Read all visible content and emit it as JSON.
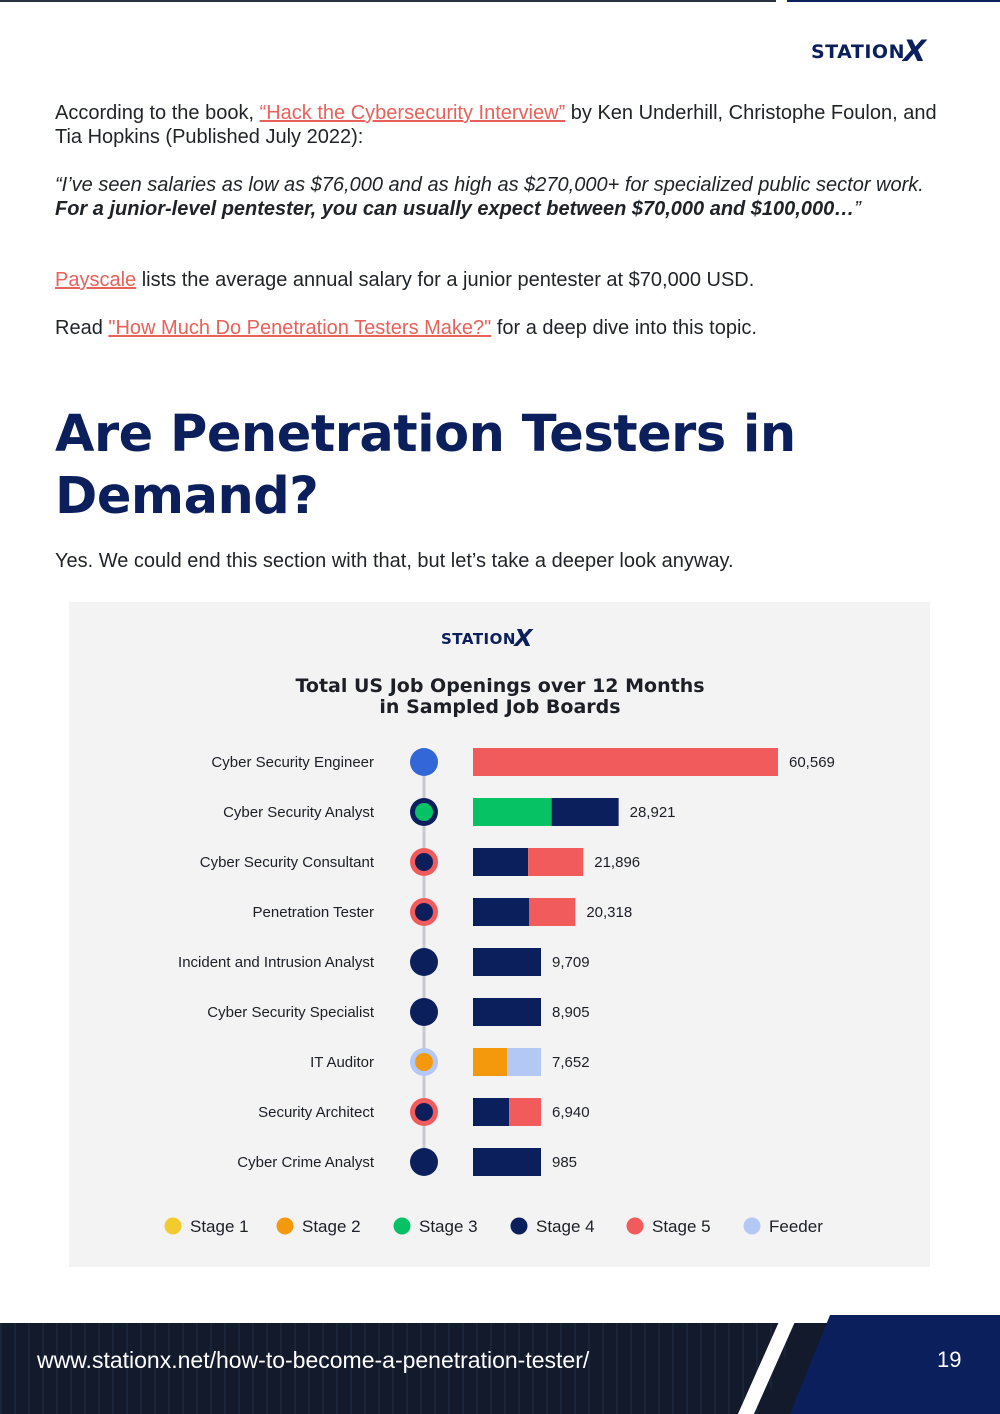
{
  "brand": {
    "logo_text": "STATION",
    "logo_x": "X",
    "color": "#0b1f5c"
  },
  "intro": {
    "lead_before": "According to the book, ",
    "book_link": "“Hack the Cybersecurity Interview”",
    "lead_after": " by Ken Underhill, Christophe Foulon, and Tia Hopkins (Published July 2022):",
    "quote_plain": "“I’ve seen salaries as low as $76,000 and as high as $270,000+ for specialized public sector work. ",
    "quote_bold": "For a junior-level pentester, you can usually expect between $70,000 and $100,000…",
    "quote_end": "”",
    "payscale_link": "Payscale",
    "payscale_text": " lists the average annual salary for a junior pentester at $70,000 USD.",
    "read_before": "Read ",
    "read_link": "\"How Much Do Penetration Testers Make?\"",
    "read_after": " for a deep dive into this topic."
  },
  "section": {
    "heading": "Are Penetration Testers in Demand?",
    "paragraph": "Yes. We could end this section with that, but let’s take a deeper look anyway."
  },
  "chart_data": {
    "type": "bar",
    "orientation": "horizontal",
    "title_line1": "Total US Job Openings over 12 Months",
    "title_line2": "in Sampled Job Boards",
    "categories": [
      "Cyber Security Engineer",
      "Cyber Security Analyst",
      "Cyber Security Consultant",
      "Penetration Tester",
      "Incident and Intrusion Analyst",
      "Cyber Security Specialist",
      "IT Auditor",
      "Security Architect",
      "Cyber Crime Analyst"
    ],
    "values": [
      60569,
      28921,
      21896,
      20318,
      9709,
      8905,
      7652,
      6940,
      985
    ],
    "value_labels": [
      "60,569",
      "28,921",
      "21,896",
      "20,318",
      "9,709",
      "8,905",
      "7,652",
      "6,940",
      "985"
    ],
    "bar_segments": [
      [
        {
          "stage": "Stage 5",
          "share": 1.0
        }
      ],
      [
        {
          "stage": "Stage 3",
          "share": 0.54
        },
        {
          "stage": "Stage 4",
          "share": 0.46
        }
      ],
      [
        {
          "stage": "Stage 4",
          "share": 0.5
        },
        {
          "stage": "Stage 5",
          "share": 0.5
        }
      ],
      [
        {
          "stage": "Stage 4",
          "share": 0.55
        },
        {
          "stage": "Stage 5",
          "share": 0.45
        }
      ],
      [
        {
          "stage": "Stage 4",
          "share": 1.0
        }
      ],
      [
        {
          "stage": "Stage 4",
          "share": 1.0
        }
      ],
      [
        {
          "stage": "Stage 2",
          "share": 0.5
        },
        {
          "stage": "Feeder",
          "share": 0.5
        }
      ],
      [
        {
          "stage": "Stage 4",
          "share": 0.53
        },
        {
          "stage": "Stage 5",
          "share": 0.47
        }
      ],
      [
        {
          "stage": "Stage 4",
          "share": 1.0
        }
      ]
    ],
    "markers": [
      {
        "fill": "#3366d6",
        "ring": null
      },
      {
        "fill": "#06c265",
        "ring": "#0b1f5c"
      },
      {
        "fill": "#0b1f5c",
        "ring": "#f25b5b"
      },
      {
        "fill": "#0b1f5c",
        "ring": "#f25b5b"
      },
      {
        "fill": "#0b1f5c",
        "ring": null
      },
      {
        "fill": "#0b1f5c",
        "ring": null
      },
      {
        "fill": "#f5990c",
        "ring": "#b3c8f5"
      },
      {
        "fill": "#0b1f5c",
        "ring": "#f25b5b"
      },
      {
        "fill": "#0b1f5c",
        "ring": null
      }
    ],
    "legend": [
      {
        "label": "Stage 1",
        "color": "#f2cc2e"
      },
      {
        "label": "Stage 2",
        "color": "#f5990c"
      },
      {
        "label": "Stage 3",
        "color": "#06c265"
      },
      {
        "label": "Stage 4",
        "color": "#0b1f5c"
      },
      {
        "label": "Stage 5",
        "color": "#f25b5b"
      },
      {
        "label": "Feeder",
        "color": "#b3c8f5"
      }
    ]
  },
  "footer": {
    "url": "www.stationx.net/how-to-become-a-penetration-tester/",
    "page_number": "19"
  }
}
